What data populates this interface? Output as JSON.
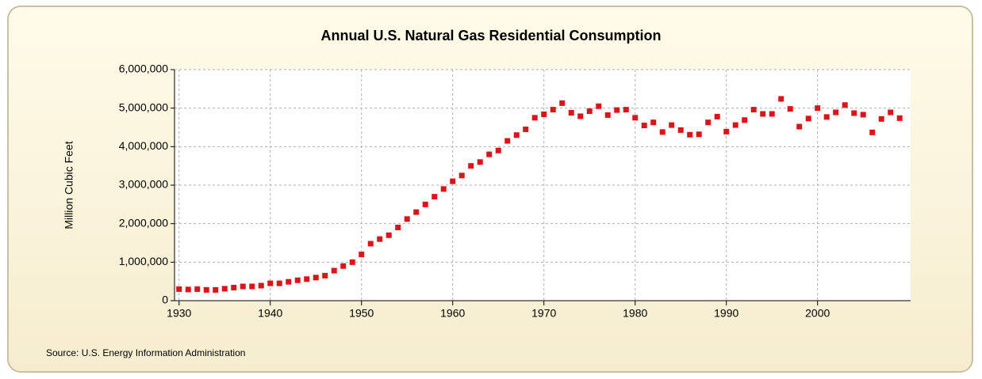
{
  "chart_data": {
    "type": "scatter",
    "title": "Annual U.S. Natural Gas Residential Consumption",
    "y_label": "Million Cubic Feet",
    "source": "Source: U.S. Energy Information Administration",
    "color": "#d9141b",
    "grid": true,
    "x": [
      1930,
      1931,
      1932,
      1933,
      1934,
      1935,
      1936,
      1937,
      1938,
      1939,
      1940,
      1941,
      1942,
      1943,
      1944,
      1945,
      1946,
      1947,
      1948,
      1949,
      1950,
      1951,
      1952,
      1953,
      1954,
      1955,
      1956,
      1957,
      1958,
      1959,
      1960,
      1961,
      1962,
      1963,
      1964,
      1965,
      1966,
      1967,
      1968,
      1969,
      1970,
      1971,
      1972,
      1973,
      1974,
      1975,
      1976,
      1977,
      1978,
      1979,
      1980,
      1981,
      1982,
      1983,
      1984,
      1985,
      1986,
      1987,
      1988,
      1989,
      1990,
      1991,
      1992,
      1993,
      1994,
      1995,
      1996,
      1997,
      1998,
      1999,
      2000,
      2001,
      2002,
      2003,
      2004,
      2005,
      2006,
      2007,
      2008,
      2009
    ],
    "values": [
      300000,
      290000,
      300000,
      280000,
      280000,
      310000,
      340000,
      370000,
      370000,
      390000,
      450000,
      450000,
      490000,
      530000,
      560000,
      600000,
      650000,
      780000,
      900000,
      1000000,
      1200000,
      1480000,
      1600000,
      1700000,
      1900000,
      2120000,
      2300000,
      2500000,
      2700000,
      2900000,
      3100000,
      3250000,
      3500000,
      3600000,
      3800000,
      3900000,
      4150000,
      4300000,
      4450000,
      4750000,
      4840000,
      4960000,
      5130000,
      4880000,
      4790000,
      4920000,
      5050000,
      4820000,
      4950000,
      4960000,
      4750000,
      4550000,
      4630000,
      4380000,
      4560000,
      4430000,
      4310000,
      4320000,
      4630000,
      4780000,
      4390000,
      4560000,
      4690000,
      4960000,
      4850000,
      4850000,
      5240000,
      4980000,
      4520000,
      4730000,
      5000000,
      4770000,
      4890000,
      5080000,
      4870000,
      4830000,
      4370000,
      4720000,
      4890000,
      4740000
    ],
    "xlim": [
      1929.5,
      2010.2
    ],
    "xticks": [
      1930,
      1940,
      1950,
      1960,
      1970,
      1980,
      1990,
      2000
    ],
    "ylim": [
      0,
      6000000
    ],
    "yticks": [
      0,
      {
        "value": 1000000,
        "label": "1,000,000"
      },
      {
        "value": 2000000,
        "label": "2,000,000"
      },
      {
        "value": 3000000,
        "label": "3,000,000"
      },
      {
        "value": 4000000,
        "label": "4,000,000"
      },
      {
        "value": 5000000,
        "label": "5,000,000"
      },
      {
        "value": 6000000,
        "label": "6,000,000"
      }
    ]
  }
}
